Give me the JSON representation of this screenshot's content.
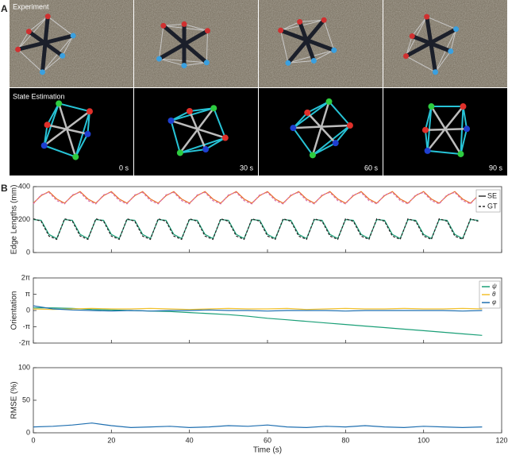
{
  "panels": {
    "A": {
      "label": "A",
      "rows": [
        {
          "title": "Experiment"
        },
        {
          "title": "State Estimation",
          "times": [
            "0 s",
            "30 s",
            "60 s",
            "90 s"
          ]
        }
      ]
    },
    "B": {
      "label": "B"
    }
  },
  "chart_data": [
    {
      "type": "line",
      "y_label": "Edge Lengths (mm)",
      "xlim": [
        0,
        120
      ],
      "xticks": [
        0,
        20,
        40,
        60,
        80,
        100,
        120
      ],
      "ylim": [
        0,
        400
      ],
      "yticks": [
        0,
        200,
        400
      ],
      "legend": [
        {
          "label": "SE",
          "color": "#000000",
          "dashed": false
        },
        {
          "label": "GT",
          "color": "#000000",
          "dashed": true
        }
      ],
      "x": [
        0,
        2,
        4,
        6,
        8,
        10,
        12,
        14,
        16,
        18,
        20,
        22,
        24,
        26,
        28,
        30,
        32,
        34,
        36,
        38,
        40,
        42,
        44,
        46,
        48,
        50,
        52,
        54,
        56,
        58,
        60,
        62,
        64,
        66,
        68,
        70,
        72,
        74,
        76,
        78,
        80,
        82,
        84,
        86,
        88,
        90,
        92,
        94,
        96,
        98,
        100,
        102,
        104,
        106,
        108,
        110,
        112,
        114
      ],
      "series": [
        {
          "color": "#e8702a",
          "dashed": false,
          "values": [
            300,
            345,
            370,
            325,
            300,
            345,
            370,
            325,
            300,
            345,
            370,
            325,
            300,
            345,
            370,
            325,
            300,
            345,
            370,
            325,
            300,
            345,
            370,
            325,
            300,
            345,
            370,
            325,
            300,
            345,
            370,
            325,
            300,
            345,
            370,
            325,
            300,
            345,
            370,
            325,
            300,
            345,
            370,
            325,
            300,
            345,
            370,
            325,
            300,
            345,
            370,
            325,
            300,
            345,
            370,
            325,
            300,
            345
          ]
        },
        {
          "color": "#d873b0",
          "dashed": true,
          "values": [
            295,
            350,
            365,
            315,
            295,
            350,
            365,
            315,
            295,
            350,
            365,
            315,
            295,
            350,
            365,
            315,
            295,
            350,
            365,
            315,
            295,
            350,
            365,
            315,
            295,
            350,
            365,
            315,
            295,
            350,
            365,
            315,
            295,
            350,
            365,
            315,
            295,
            350,
            365,
            315,
            295,
            350,
            365,
            315,
            295,
            350,
            365,
            315,
            295,
            350,
            365,
            315,
            295,
            350,
            365,
            315,
            295,
            350
          ]
        },
        {
          "color": "#1a9f77",
          "dashed": false,
          "values": [
            200,
            195,
            110,
            85,
            200,
            195,
            110,
            85,
            200,
            195,
            110,
            85,
            200,
            195,
            110,
            85,
            200,
            195,
            110,
            85,
            200,
            195,
            110,
            85,
            200,
            195,
            110,
            85,
            200,
            195,
            110,
            85,
            200,
            195,
            110,
            85,
            200,
            195,
            110,
            85,
            200,
            195,
            110,
            85,
            200,
            195,
            110,
            85,
            200,
            195,
            110,
            85,
            200,
            195,
            110,
            85,
            200,
            195
          ]
        },
        {
          "color": "#222222",
          "dashed": true,
          "values": [
            205,
            190,
            100,
            80,
            205,
            190,
            100,
            80,
            205,
            190,
            100,
            80,
            205,
            190,
            100,
            80,
            205,
            190,
            100,
            80,
            205,
            190,
            100,
            80,
            205,
            190,
            100,
            80,
            205,
            190,
            100,
            80,
            205,
            190,
            100,
            80,
            205,
            190,
            100,
            80,
            205,
            190,
            100,
            80,
            205,
            190,
            100,
            80,
            205,
            190,
            100,
            80,
            205,
            190,
            100,
            80,
            205,
            190
          ]
        }
      ]
    },
    {
      "type": "line",
      "y_label": "Orientation",
      "xlim": [
        0,
        120
      ],
      "xticks": [
        0,
        20,
        40,
        60,
        80,
        100,
        120
      ],
      "ylim": [
        -6.283,
        6.283
      ],
      "yticks": [
        {
          "value": -6.283,
          "label": "-2π"
        },
        {
          "value": -3.142,
          "label": "-π"
        },
        0,
        {
          "value": 3.142,
          "label": "π"
        },
        {
          "value": 6.283,
          "label": "2π"
        }
      ],
      "x": [
        0,
        5,
        10,
        15,
        20,
        25,
        30,
        35,
        40,
        45,
        50,
        55,
        60,
        65,
        70,
        75,
        80,
        85,
        90,
        95,
        100,
        105,
        110,
        115
      ],
      "series": [
        {
          "name": "ψ",
          "color": "#1a9f77",
          "values": [
            0.5,
            0.5,
            0.4,
            0.2,
            0.1,
            0,
            -0.1,
            -0.2,
            -0.4,
            -0.6,
            -0.8,
            -1.1,
            -1.5,
            -1.8,
            -2.1,
            -2.4,
            -2.7,
            -3.0,
            -3.3,
            -3.6,
            -3.9,
            -4.2,
            -4.5,
            -4.8
          ]
        },
        {
          "name": "θ",
          "color": "#f2c12e",
          "values": [
            0.3,
            0.2,
            0.3,
            0.4,
            0.3,
            0.3,
            0.4,
            0.3,
            0.2,
            0.3,
            0.4,
            0.3,
            0.3,
            0.4,
            0.2,
            0.3,
            0.4,
            0.3,
            0.3,
            0.4,
            0.3,
            0.3,
            0.4,
            0.3
          ]
        },
        {
          "name": "φ",
          "color": "#1f6fb0",
          "values": [
            0.9,
            0.3,
            0.1,
            0,
            -0.1,
            0,
            -0.1,
            0,
            0,
            0.1,
            0,
            0,
            -0.1,
            0,
            0,
            0,
            -0.1,
            0,
            0,
            0,
            0,
            0,
            -0.1,
            0
          ]
        }
      ]
    },
    {
      "type": "line",
      "y_label": "RMSE (%)",
      "x_label": "Time (s)",
      "xlim": [
        0,
        120
      ],
      "xticks": [
        0,
        20,
        40,
        60,
        80,
        100,
        120
      ],
      "ylim": [
        0,
        100
      ],
      "yticks": [
        0,
        50,
        100
      ],
      "x": [
        0,
        5,
        10,
        15,
        20,
        25,
        30,
        35,
        40,
        45,
        50,
        55,
        60,
        65,
        70,
        75,
        80,
        85,
        90,
        95,
        100,
        105,
        110,
        115
      ],
      "series": [
        {
          "color": "#1f6fb0",
          "values": [
            9,
            10,
            12,
            15,
            11,
            8,
            9,
            10,
            8,
            9,
            11,
            10,
            12,
            9,
            8,
            10,
            9,
            11,
            9,
            8,
            10,
            9,
            8,
            9
          ]
        }
      ]
    }
  ]
}
